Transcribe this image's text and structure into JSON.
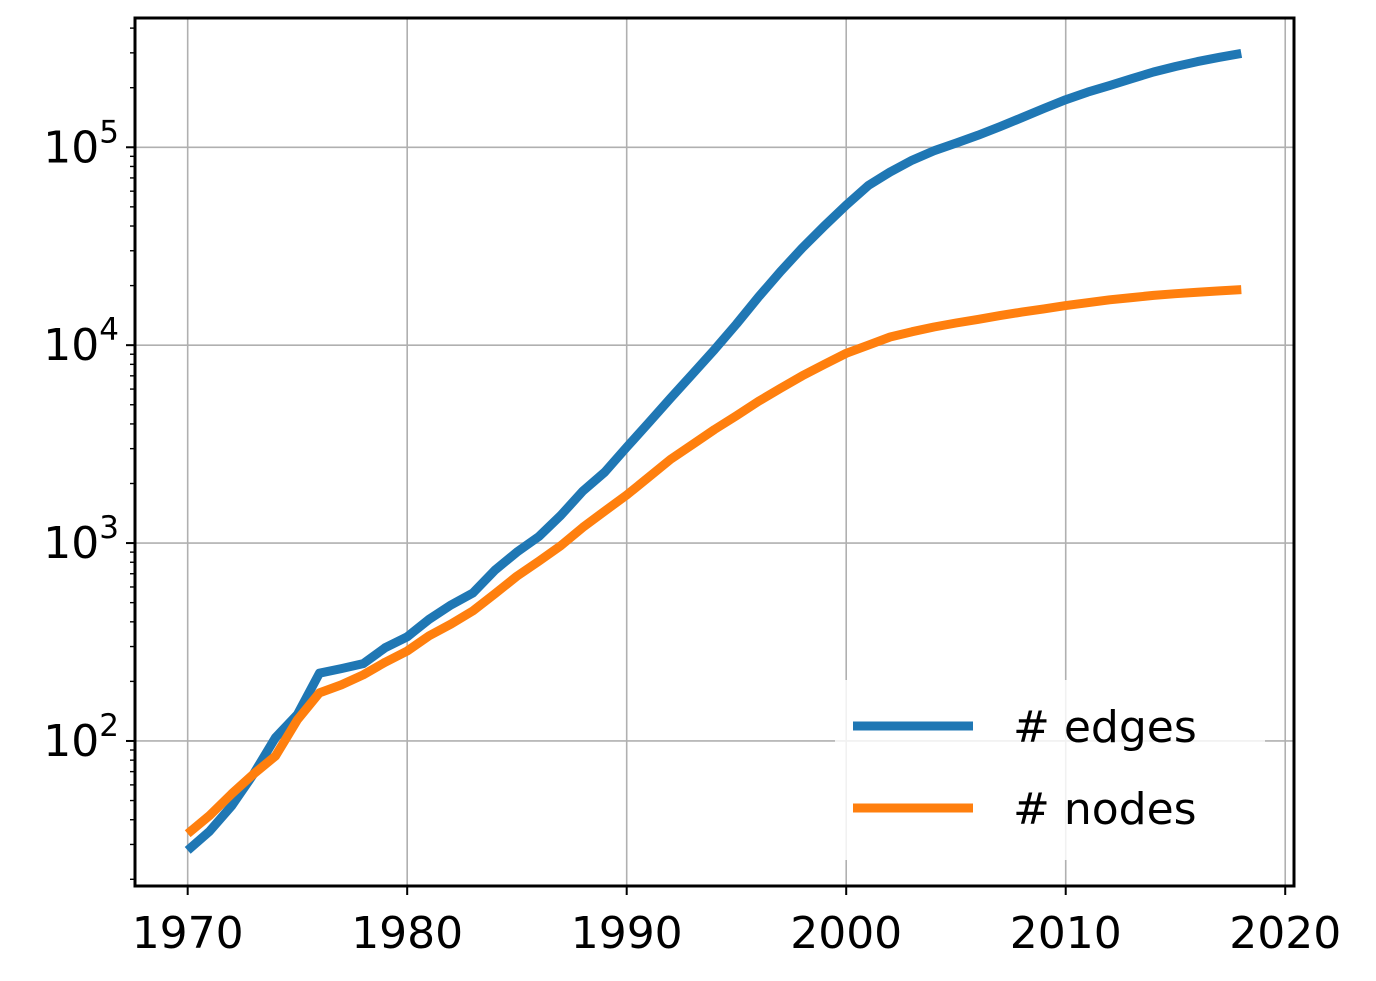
{
  "chart_data": {
    "type": "line",
    "title": "",
    "xlabel": "",
    "ylabel": "",
    "y_scale": "log",
    "grid": true,
    "legend_position": "lower-right",
    "xlim": [
      1967.6,
      2020.4
    ],
    "ylim": [
      18.5,
      450000
    ],
    "x_ticks": [
      1970,
      1980,
      1990,
      2000,
      2010,
      2020
    ],
    "x_tick_labels": [
      "1970",
      "1980",
      "1990",
      "2000",
      "2010",
      "2020"
    ],
    "y_ticks": [
      {
        "value": 100,
        "base": "10",
        "exp": "2"
      },
      {
        "value": 1000,
        "base": "10",
        "exp": "3"
      },
      {
        "value": 10000,
        "base": "10",
        "exp": "4"
      },
      {
        "value": 100000,
        "base": "10",
        "exp": "5"
      }
    ],
    "x": [
      1970,
      1971,
      1972,
      1973,
      1974,
      1975,
      1976,
      1977,
      1978,
      1979,
      1980,
      1981,
      1982,
      1983,
      1984,
      1985,
      1986,
      1987,
      1988,
      1989,
      1990,
      1991,
      1992,
      1993,
      1994,
      1995,
      1996,
      1997,
      1998,
      1999,
      2000,
      2001,
      2002,
      2003,
      2004,
      2005,
      2006,
      2007,
      2008,
      2009,
      2010,
      2011,
      2012,
      2013,
      2014,
      2015,
      2016,
      2017,
      2018
    ],
    "series": [
      {
        "name": "# edges",
        "color": "#1f77b4",
        "values": [
          28,
          35,
          47,
          68,
          104,
          136,
          220,
          232,
          246,
          296,
          336,
          412,
          487,
          560,
          730,
          900,
          1080,
          1380,
          1830,
          2280,
          3050,
          4050,
          5400,
          7150,
          9500,
          12800,
          17500,
          23500,
          31000,
          40000,
          51000,
          64000,
          75000,
          86000,
          96000,
          105000,
          115000,
          127000,
          141000,
          157000,
          174000,
          190000,
          205000,
          222000,
          240000,
          256000,
          271000,
          285000,
          298000
        ]
      },
      {
        "name": "# nodes",
        "color": "#ff7f0e",
        "values": [
          34,
          42,
          54,
          68,
          84,
          128,
          175,
          192,
          216,
          250,
          285,
          340,
          390,
          455,
          555,
          680,
          810,
          970,
          1200,
          1450,
          1750,
          2150,
          2650,
          3150,
          3750,
          4400,
          5200,
          6050,
          7000,
          8000,
          9100,
          10000,
          11000,
          11700,
          12350,
          12950,
          13500,
          14100,
          14700,
          15250,
          15850,
          16400,
          16950,
          17400,
          17850,
          18200,
          18500,
          18800,
          19100
        ]
      }
    ]
  }
}
